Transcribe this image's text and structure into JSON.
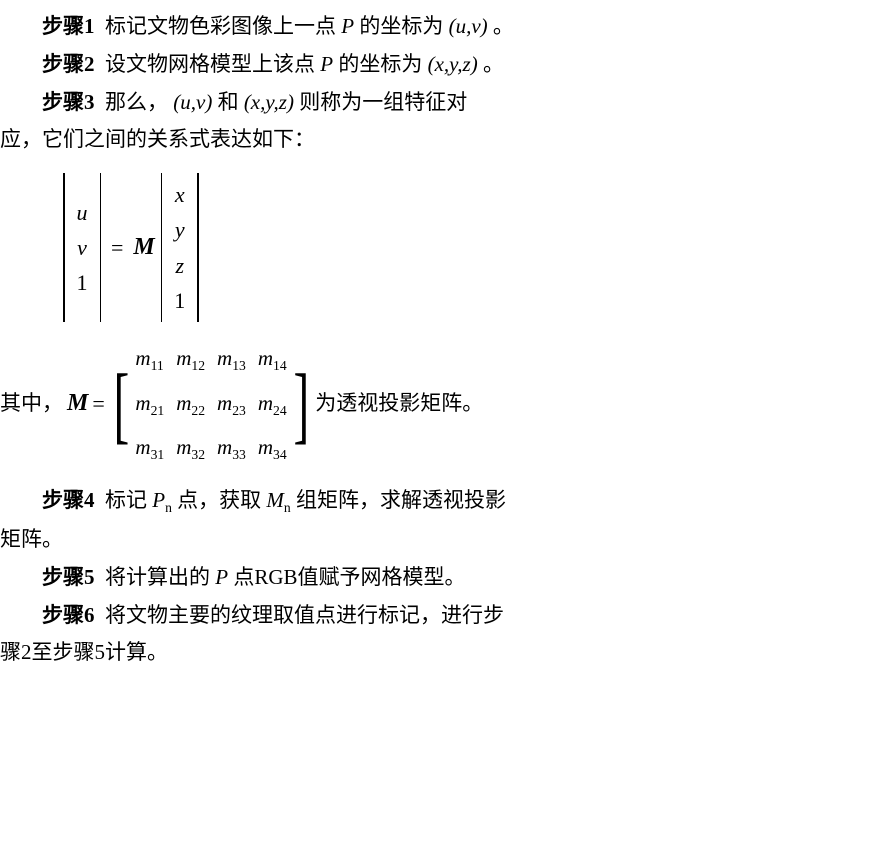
{
  "step1": {
    "label": "步骤1",
    "text_a": "标记文物色彩图像上一点",
    "P": "P",
    "text_b": "的坐标为",
    "coord": "(u,v)",
    "text_c": "。"
  },
  "step2": {
    "label": "步骤2",
    "text_a": "设文物网格模型上该点",
    "P": "P",
    "text_b": "的坐标为",
    "coord": "(x,y,z)",
    "text_c": "。"
  },
  "step3": {
    "label": "步骤3",
    "text_a": "那么，",
    "uv": "(u,v)",
    "text_b": "和",
    "xyz": "(x,y,z)",
    "text_c": "则称为一组特征对"
  },
  "step3_cont": "应，它们之间的关系式表达如下：",
  "equation": {
    "left_vec": [
      "u",
      "v",
      "1"
    ],
    "eq": "=",
    "M": "M",
    "right_vec": [
      "x",
      "y",
      "z",
      "1"
    ]
  },
  "matrix_def": {
    "prefix": "其中，",
    "M": "M",
    "eq": "=",
    "entries": [
      [
        "m",
        "11"
      ],
      [
        "m",
        "12"
      ],
      [
        "m",
        "13"
      ],
      [
        "m",
        "14"
      ],
      [
        "m",
        "21"
      ],
      [
        "m",
        "22"
      ],
      [
        "m",
        "23"
      ],
      [
        "m",
        "24"
      ],
      [
        "m",
        "31"
      ],
      [
        "m",
        "32"
      ],
      [
        "m",
        "33"
      ],
      [
        "m",
        "34"
      ]
    ],
    "suffix": "为透视投影矩阵。"
  },
  "step4": {
    "label": "步骤4",
    "text_a": "标记",
    "Pn": "P",
    "Pn_sub": "n",
    "text_b": "点，获取",
    "Mn": "M",
    "Mn_sub": "n",
    "text_c": "组矩阵，求解透视投影"
  },
  "step4_cont": "矩阵。",
  "step5": {
    "label": "步骤5",
    "text_a": "将计算出的",
    "P": "P",
    "text_b": "点RGB值赋予网格模型。"
  },
  "step6": {
    "label": "步骤6",
    "text_a": "将文物主要的纹理取值点进行标记，进行步"
  },
  "step6_cont": "骤2至步骤5计算。"
}
